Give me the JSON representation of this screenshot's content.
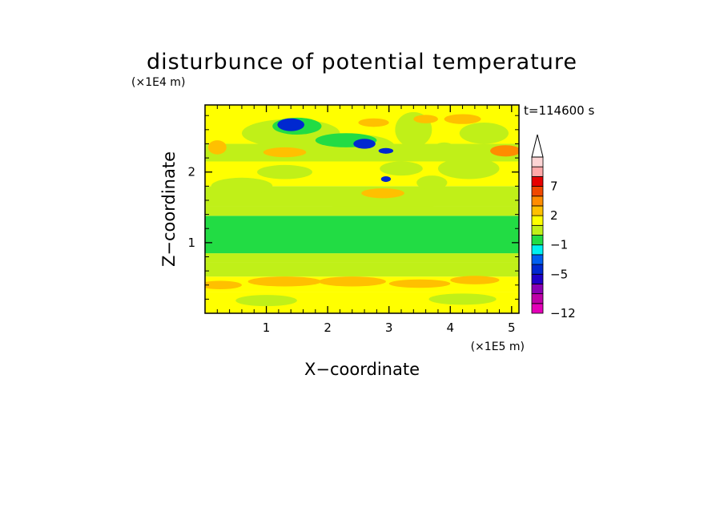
{
  "chart_data": {
    "type": "heatmap",
    "title": "disturbunce of potential temperature",
    "time_label": "t=114600 s",
    "xlabel": "X−coordinate",
    "ylabel": "Z−coordinate",
    "x_unit": "(×1E5 m)",
    "y_unit": "(×1E4 m)",
    "xlim": [
      0,
      5.12
    ],
    "ylim": [
      0,
      2.95
    ],
    "x_ticks": [
      1,
      2,
      3,
      4,
      5
    ],
    "x_tick_labels": [
      "1",
      "2",
      "3",
      "4",
      "5"
    ],
    "y_ticks": [
      1,
      2
    ],
    "y_tick_labels": [
      "1",
      "2"
    ],
    "colorbar": {
      "levels": [
        -12,
        -10,
        -8,
        -6,
        -5,
        -4,
        -3,
        -1,
        0,
        1,
        2,
        3,
        5,
        7,
        8,
        9,
        10
      ],
      "colors": [
        "#e400b8",
        "#bf00a8",
        "#8a00b4",
        "#1f00c8",
        "#0028d0",
        "#005ff0",
        "#00f0f0",
        "#22dc44",
        "#c0f018",
        "#ffff00",
        "#ffc000",
        "#ff8c00",
        "#f04800",
        "#e60000",
        "#ffa8a8",
        "#fcd4d4"
      ],
      "labels": [
        {
          "value": -12,
          "text": "−12"
        },
        {
          "value": -5,
          "text": "−5"
        },
        {
          "value": -1,
          "text": "−1"
        },
        {
          "value": 2,
          "text": "2"
        },
        {
          "value": 7,
          "text": "7"
        }
      ]
    },
    "bands": [
      {
        "z_bottom": 0.0,
        "z_top": 0.3,
        "value": 1.6
      },
      {
        "z_bottom": 0.3,
        "z_top": 0.52,
        "value": 1.2
      },
      {
        "z_bottom": 0.52,
        "z_top": 0.72,
        "value": 0.7
      },
      {
        "z_bottom": 0.72,
        "z_top": 0.85,
        "value": 0.1
      },
      {
        "z_bottom": 0.85,
        "z_top": 1.38,
        "value": -0.5
      },
      {
        "z_bottom": 1.38,
        "z_top": 1.52,
        "value": 0.2
      },
      {
        "z_bottom": 1.52,
        "z_top": 1.8,
        "value": 0.8
      },
      {
        "z_bottom": 1.8,
        "z_top": 2.15,
        "value": 1.3
      },
      {
        "z_bottom": 2.15,
        "z_top": 2.4,
        "value": 0.8
      },
      {
        "z_bottom": 2.4,
        "z_top": 2.95,
        "value": 1.4
      }
    ],
    "cells": [
      {
        "x": 0.25,
        "z": 0.4,
        "rx": 0.35,
        "rz": 0.06,
        "value": 2.5
      },
      {
        "x": 1.3,
        "z": 0.45,
        "rx": 0.6,
        "rz": 0.07,
        "value": 2.5
      },
      {
        "x": 2.4,
        "z": 0.45,
        "rx": 0.55,
        "rz": 0.07,
        "value": 2.5
      },
      {
        "x": 3.5,
        "z": 0.42,
        "rx": 0.5,
        "rz": 0.06,
        "value": 2.5
      },
      {
        "x": 4.4,
        "z": 0.47,
        "rx": 0.4,
        "rz": 0.06,
        "value": 2.5
      },
      {
        "x": 1.0,
        "z": 0.18,
        "rx": 0.5,
        "rz": 0.08,
        "value": 0.6
      },
      {
        "x": 4.2,
        "z": 0.2,
        "rx": 0.55,
        "rz": 0.08,
        "value": 0.6
      },
      {
        "x": 2.9,
        "z": 1.55,
        "rx": 0.9,
        "rz": 0.08,
        "value": 0.2
      },
      {
        "x": 0.6,
        "z": 1.8,
        "rx": 0.5,
        "rz": 0.12,
        "value": 0.6
      },
      {
        "x": 2.2,
        "z": 1.65,
        "rx": 0.4,
        "rz": 0.05,
        "value": 0.2
      },
      {
        "x": 2.9,
        "z": 1.7,
        "rx": 0.35,
        "rz": 0.07,
        "value": 2.5
      },
      {
        "x": 0.2,
        "z": 2.35,
        "rx": 0.15,
        "rz": 0.1,
        "value": 2.5
      },
      {
        "x": 1.3,
        "z": 2.28,
        "rx": 0.35,
        "rz": 0.07,
        "value": 2.5
      },
      {
        "x": 1.3,
        "z": 2.0,
        "rx": 0.45,
        "rz": 0.1,
        "value": 0.6
      },
      {
        "x": 4.3,
        "z": 2.05,
        "rx": 0.5,
        "rz": 0.15,
        "value": 0.6
      },
      {
        "x": 3.9,
        "z": 2.3,
        "rx": 0.2,
        "rz": 0.12,
        "value": 0.6
      },
      {
        "x": 4.55,
        "z": 2.55,
        "rx": 0.4,
        "rz": 0.15,
        "value": 0.6
      },
      {
        "x": 4.9,
        "z": 2.3,
        "rx": 0.25,
        "rz": 0.08,
        "value": 4.0
      },
      {
        "x": 1.4,
        "z": 2.55,
        "rx": 0.8,
        "rz": 0.2,
        "value": 0.2
      },
      {
        "x": 2.5,
        "z": 2.35,
        "rx": 0.6,
        "rz": 0.18,
        "value": 0.2
      },
      {
        "x": 3.4,
        "z": 2.6,
        "rx": 0.3,
        "rz": 0.25,
        "value": 0.2
      },
      {
        "x": 1.5,
        "z": 2.65,
        "rx": 0.4,
        "rz": 0.12,
        "value": -0.5
      },
      {
        "x": 2.3,
        "z": 2.45,
        "rx": 0.5,
        "rz": 0.1,
        "value": -0.5
      },
      {
        "x": 1.4,
        "z": 2.67,
        "rx": 0.22,
        "rz": 0.09,
        "value": -4.5
      },
      {
        "x": 2.6,
        "z": 2.4,
        "rx": 0.18,
        "rz": 0.07,
        "value": -4.5
      },
      {
        "x": 2.95,
        "z": 2.3,
        "rx": 0.12,
        "rz": 0.04,
        "value": -4.5
      },
      {
        "x": 2.95,
        "z": 1.9,
        "rx": 0.08,
        "rz": 0.04,
        "value": -4.5
      },
      {
        "x": 2.75,
        "z": 2.7,
        "rx": 0.25,
        "rz": 0.06,
        "value": 2.5
      },
      {
        "x": 3.6,
        "z": 2.75,
        "rx": 0.2,
        "rz": 0.06,
        "value": 2.5
      },
      {
        "x": 4.2,
        "z": 2.75,
        "rx": 0.3,
        "rz": 0.07,
        "value": 2.5
      },
      {
        "x": 3.2,
        "z": 2.05,
        "rx": 0.35,
        "rz": 0.1,
        "value": 0.6
      },
      {
        "x": 3.7,
        "z": 1.85,
        "rx": 0.25,
        "rz": 0.1,
        "value": 0.6
      }
    ]
  }
}
